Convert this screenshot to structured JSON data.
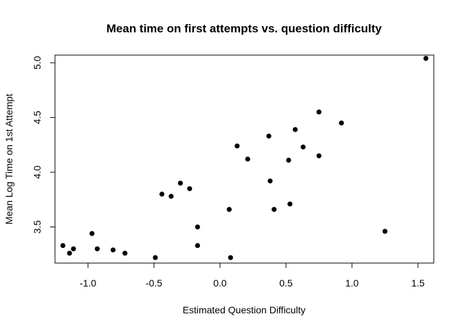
{
  "chart_data": {
    "type": "scatter",
    "title": "Mean time on first attempts vs. question difficulty",
    "xlabel": "Estimated Question Difficulty",
    "ylabel": "Mean Log Time on 1st Attempt",
    "xlim": [
      -1.25,
      1.62
    ],
    "ylim": [
      3.17,
      5.07
    ],
    "x_ticks": [
      -1.0,
      -0.5,
      0.0,
      0.5,
      1.0,
      1.5
    ],
    "x_tick_labels": [
      "-1.0",
      "-0.5",
      "0.0",
      "0.5",
      "1.0",
      "1.5"
    ],
    "y_ticks": [
      3.5,
      4.0,
      4.5,
      5.0
    ],
    "y_tick_labels": [
      "3.5",
      "4.0",
      "4.5",
      "5.0"
    ],
    "grid": false,
    "legend": "none",
    "marker_color": "#000000",
    "points": [
      {
        "x": -1.19,
        "y": 3.33
      },
      {
        "x": -1.14,
        "y": 3.26
      },
      {
        "x": -1.11,
        "y": 3.3
      },
      {
        "x": -0.97,
        "y": 3.44
      },
      {
        "x": -0.93,
        "y": 3.3
      },
      {
        "x": -0.81,
        "y": 3.29
      },
      {
        "x": -0.72,
        "y": 3.26
      },
      {
        "x": -0.49,
        "y": 3.22
      },
      {
        "x": -0.44,
        "y": 3.8
      },
      {
        "x": -0.37,
        "y": 3.78
      },
      {
        "x": -0.3,
        "y": 3.9
      },
      {
        "x": -0.23,
        "y": 3.85
      },
      {
        "x": -0.17,
        "y": 3.5
      },
      {
        "x": -0.17,
        "y": 3.33
      },
      {
        "x": 0.07,
        "y": 3.66
      },
      {
        "x": 0.08,
        "y": 3.22
      },
      {
        "x": 0.13,
        "y": 4.24
      },
      {
        "x": 0.21,
        "y": 4.12
      },
      {
        "x": 0.37,
        "y": 4.33
      },
      {
        "x": 0.38,
        "y": 3.92
      },
      {
        "x": 0.41,
        "y": 3.66
      },
      {
        "x": 0.52,
        "y": 4.11
      },
      {
        "x": 0.53,
        "y": 3.71
      },
      {
        "x": 0.57,
        "y": 4.39
      },
      {
        "x": 0.63,
        "y": 4.23
      },
      {
        "x": 0.75,
        "y": 4.55
      },
      {
        "x": 0.75,
        "y": 4.15
      },
      {
        "x": 0.92,
        "y": 4.45
      },
      {
        "x": 1.25,
        "y": 3.46
      },
      {
        "x": 1.56,
        "y": 5.04
      }
    ]
  }
}
